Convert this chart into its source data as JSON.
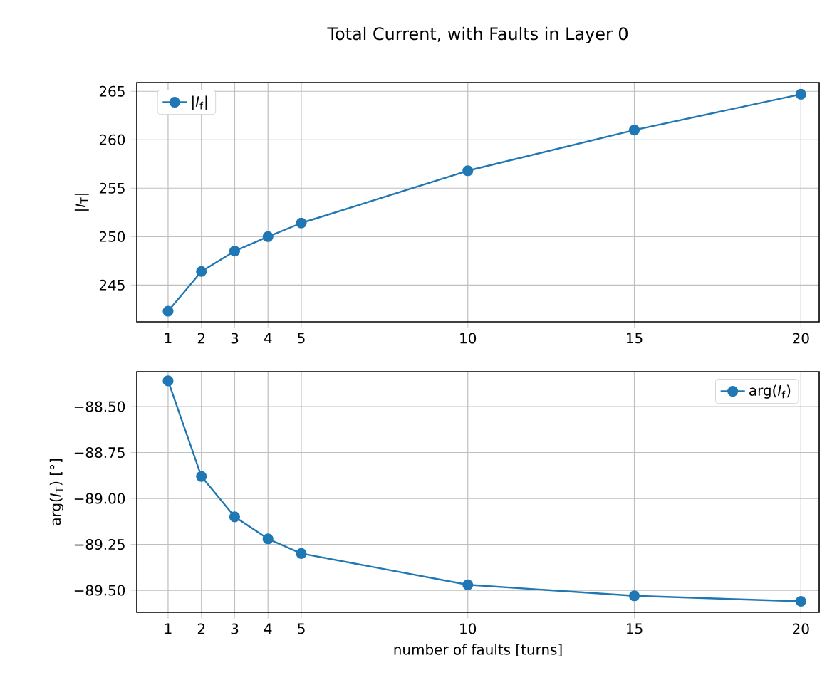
{
  "chart_data": [
    {
      "type": "line",
      "title": "Total Current, with Faults in Layer 0",
      "ylabel": "|*I*$_{T}$|",
      "x": [
        1,
        2,
        3,
        4,
        5,
        10,
        15,
        20
      ],
      "series": [
        {
          "name": "|*I*$_{f}$|",
          "color": "#1f77b4",
          "values": [
            242.3,
            246.4,
            248.5,
            250.0,
            251.4,
            256.8,
            261.0,
            264.7
          ]
        }
      ],
      "xlim": [
        0.06,
        20.55
      ],
      "ylim": [
        241.2,
        265.9
      ],
      "xticks": [
        1,
        2,
        3,
        4,
        5,
        10,
        15,
        20
      ],
      "yticks": [
        245,
        250,
        255,
        260,
        265
      ],
      "grid": true,
      "legend": "top left",
      "marker": "circle",
      "line_style": "solid"
    },
    {
      "type": "line",
      "xlabel": "number of faults [turns]",
      "ylabel": "arg(*I*$_{T}$) [°]",
      "x": [
        1,
        2,
        3,
        4,
        5,
        10,
        15,
        20
      ],
      "series": [
        {
          "name": "arg(*I*$_{f}$)",
          "color": "#1f77b4",
          "values": [
            -88.36,
            -88.88,
            -89.1,
            -89.22,
            -89.3,
            -89.47,
            -89.53,
            -89.56
          ]
        }
      ],
      "xlim": [
        0.06,
        20.55
      ],
      "ylim": [
        -89.62,
        -88.31
      ],
      "xticks": [
        1,
        2,
        3,
        4,
        5,
        10,
        15,
        20
      ],
      "yticks": [
        {
          "value": -88.5,
          "label": "−88.50"
        },
        {
          "value": -88.75,
          "label": "−88.75"
        },
        {
          "value": -89.0,
          "label": "−89.00"
        },
        {
          "value": -89.25,
          "label": "−89.25"
        },
        {
          "value": -89.5,
          "label": "−89.50"
        }
      ],
      "grid": true,
      "legend": "top right",
      "marker": "circle",
      "line_style": "solid"
    }
  ]
}
